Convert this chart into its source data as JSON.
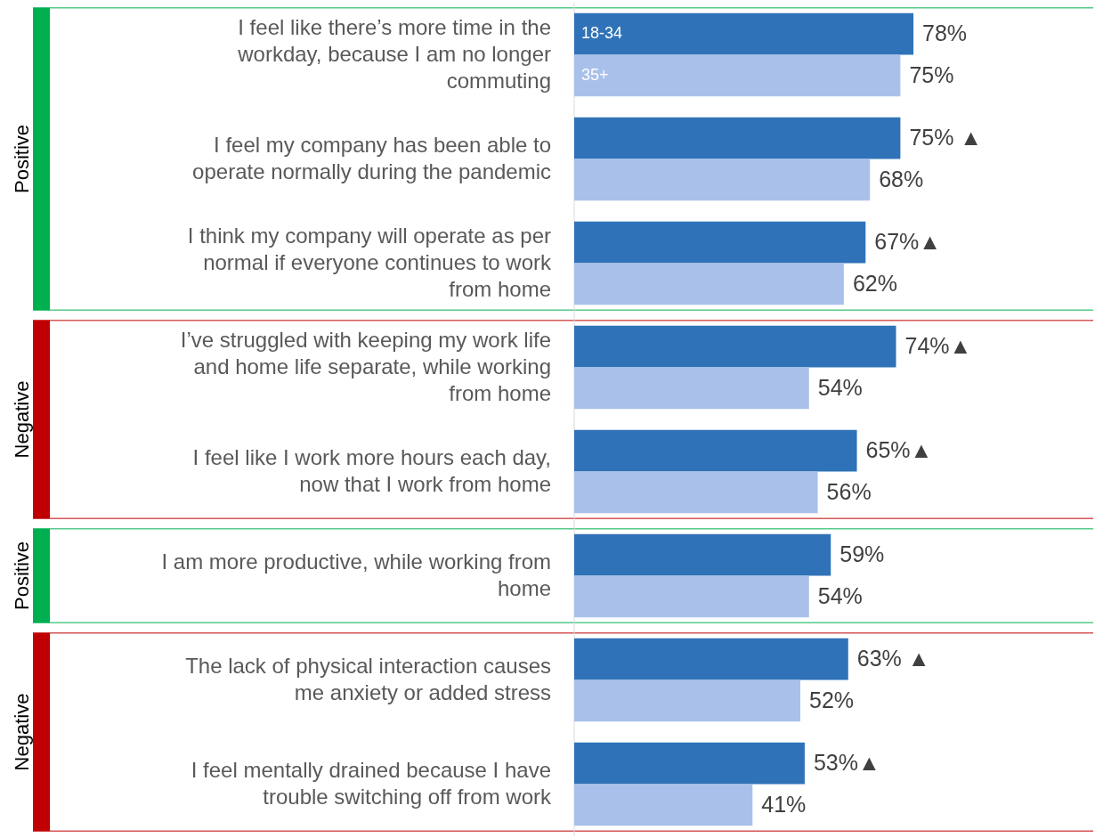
{
  "chart_data": {
    "type": "bar",
    "orientation": "horizontal",
    "categories": [
      "I feel like there’s more time in the workday, because I am no longer commuting",
      "I feel my company has been able to operate normally during the pandemic",
      "I think my company will operate as per normal if everyone continues to work from home",
      "I’ve struggled with keeping my work life and home life separate, while working from home",
      "I feel like I work more hours each day, now that I work from home",
      "I am more productive, while working from home",
      "The lack of physical interaction causes me anxiety or added stress",
      "I feel mentally drained because I have trouble switching off from work"
    ],
    "series": [
      {
        "name": "18-34",
        "color": "#2f72b8",
        "values": [
          78,
          75,
          67,
          74,
          65,
          59,
          63,
          53
        ],
        "value_labels": [
          "78%",
          "75% ▲",
          "67%▲",
          "74%▲",
          "65%▲",
          "59%",
          "63% ▲",
          "53%▲"
        ]
      },
      {
        "name": "35+",
        "color": "#a9c1ea",
        "values": [
          75,
          68,
          62,
          54,
          56,
          54,
          52,
          41
        ],
        "value_labels": [
          "75%",
          "68%",
          "62%",
          "54%",
          "56%",
          "54%",
          "52%",
          "41%"
        ]
      }
    ],
    "annotations": [
      "Positive",
      "Negative",
      "Positive",
      "Negative"
    ]
  }
}
